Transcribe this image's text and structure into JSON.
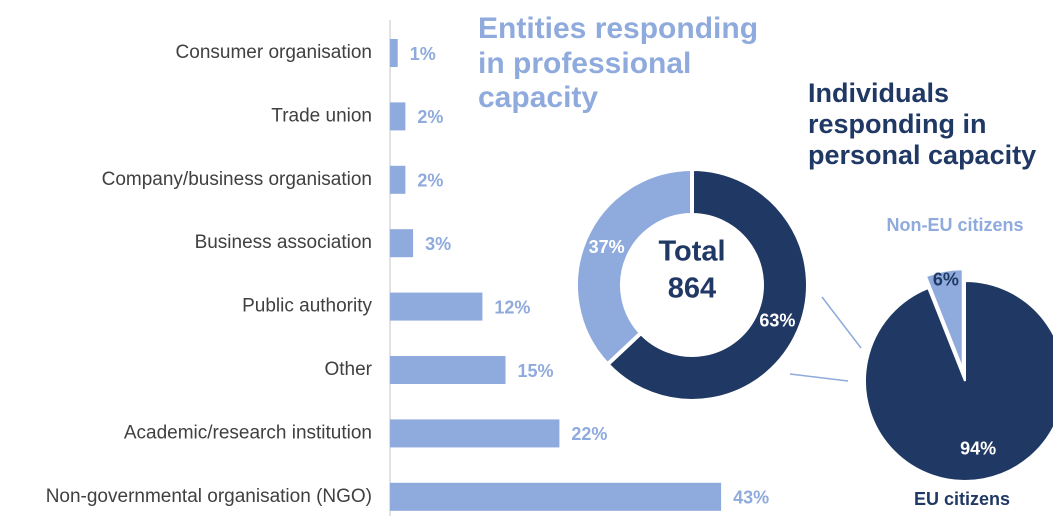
{
  "chart_data": [
    {
      "type": "bar",
      "orientation": "horizontal",
      "categories": [
        "Consumer organisation",
        "Trade union",
        "Company/business organisation",
        "Business association",
        "Public authority",
        "Other",
        "Academic/research institution",
        "Non-governmental organisation (NGO)"
      ],
      "values": [
        1,
        2,
        2,
        3,
        12,
        15,
        22,
        43
      ],
      "value_labels": [
        "1%",
        "2%",
        "2%",
        "3%",
        "12%",
        "15%",
        "22%",
        "43%"
      ],
      "color": "#8faadc"
    },
    {
      "type": "donut",
      "categories": [
        "Individuals responding in personal capacity",
        "Entities responding in professional capacity"
      ],
      "values": [
        63,
        37
      ],
      "value_labels": [
        "63%",
        "37%"
      ],
      "colors": [
        "#203864",
        "#8faadc"
      ],
      "center_label": "Total",
      "total": 864
    },
    {
      "type": "pie",
      "categories": [
        "EU citizens",
        "Non-EU citizens"
      ],
      "values": [
        94,
        6
      ],
      "value_labels": [
        "94%",
        "6%"
      ],
      "colors": [
        "#203864",
        "#8faadc"
      ]
    }
  ]
}
